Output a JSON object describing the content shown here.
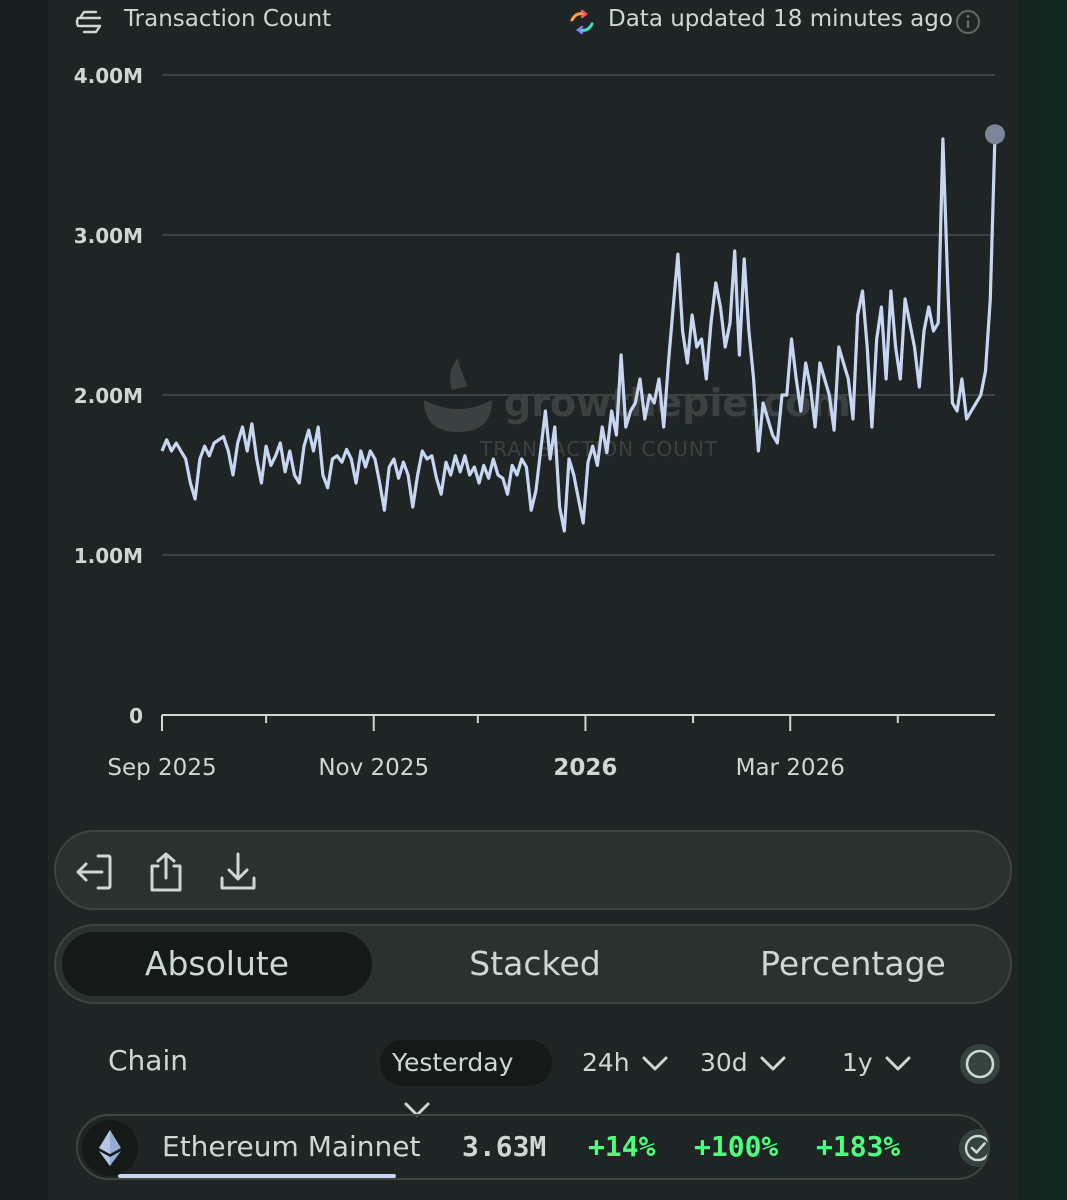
{
  "header": {
    "title": "Transaction Count",
    "updated": "Data updated 18 minutes ago",
    "icons": [
      "transaction-count-icon",
      "refresh-icon",
      "info-icon"
    ]
  },
  "chart_data": {
    "type": "line",
    "ylim": [
      0,
      4000000
    ],
    "yticks": [
      {
        "value": 0,
        "label": "0"
      },
      {
        "value": 1000000,
        "label": "1.00M"
      },
      {
        "value": 2000000,
        "label": "2.00M"
      },
      {
        "value": 3000000,
        "label": "3.00M"
      },
      {
        "value": 4000000,
        "label": "4.00M"
      }
    ],
    "xticks": [
      {
        "date": "2025-09-01",
        "label": "Sep 2025",
        "bold": false
      },
      {
        "date": "2025-11-01",
        "label": "Nov 2025",
        "bold": false
      },
      {
        "date": "2026-01-01",
        "label": "2026",
        "bold": true
      },
      {
        "date": "2026-03-01",
        "label": "Mar 2026",
        "bold": false
      }
    ],
    "xrange": [
      "2025-09-01",
      "2026-04-29"
    ],
    "grid": true,
    "line_color": "#c7d6f2",
    "watermark": {
      "brand": "growthepie.com",
      "subtitle": "TRANSACTION COUNT"
    },
    "series": [
      {
        "values": [
          1650000,
          1720000,
          1650000,
          1700000,
          1650000,
          1600000,
          1450000,
          1350000,
          1600000,
          1680000,
          1620000,
          1700000,
          1720000,
          1740000,
          1650000,
          1500000,
          1700000,
          1800000,
          1650000,
          1820000,
          1600000,
          1450000,
          1680000,
          1560000,
          1620000,
          1700000,
          1520000,
          1650000,
          1500000,
          1450000,
          1680000,
          1780000,
          1650000,
          1800000,
          1500000,
          1420000,
          1600000,
          1620000,
          1580000,
          1660000,
          1600000,
          1450000,
          1650000,
          1550000,
          1650000,
          1600000,
          1450000,
          1280000,
          1550000,
          1600000,
          1480000,
          1580000,
          1500000,
          1300000,
          1500000,
          1650000,
          1600000,
          1620000,
          1480000,
          1380000,
          1580000,
          1500000,
          1620000,
          1520000,
          1620000,
          1500000,
          1550000,
          1450000,
          1560000,
          1480000,
          1600000,
          1500000,
          1480000,
          1380000,
          1560000,
          1500000,
          1600000,
          1550000,
          1280000,
          1400000,
          1650000,
          1900000,
          1600000,
          1800000,
          1300000,
          1150000,
          1600000,
          1500000,
          1350000,
          1200000,
          1580000,
          1680000,
          1560000,
          1800000,
          1640000,
          1900000,
          1750000,
          2250000,
          1800000,
          1900000,
          1950000,
          2100000,
          1850000,
          2000000,
          1950000,
          2100000,
          1800000,
          2200000,
          2550000,
          2880000,
          2400000,
          2200000,
          2500000,
          2300000,
          2350000,
          2100000,
          2450000,
          2700000,
          2550000,
          2300000,
          2450000,
          2900000,
          2250000,
          2850000,
          2400000,
          2100000,
          1650000,
          1950000,
          1850000,
          1750000,
          1700000,
          2000000,
          2000000,
          2350000,
          2100000,
          1900000,
          2200000,
          2050000,
          1800000,
          2200000,
          2100000,
          2000000,
          1780000,
          2300000,
          2200000,
          2100000,
          1850000,
          2500000,
          2650000,
          2300000,
          1800000,
          2350000,
          2550000,
          2100000,
          2650000,
          2300000,
          2100000,
          2600000,
          2450000,
          2300000,
          2050000,
          2400000,
          2550000,
          2400000,
          2450000,
          3600000,
          2700000,
          1950000,
          1900000,
          2100000,
          1850000,
          1900000,
          1950000,
          2000000,
          2150000,
          2600000,
          3630000
        ]
      }
    ],
    "last_point_marker": true
  },
  "toolbar": {
    "icons": [
      "exit-icon",
      "share-icon",
      "download-icon"
    ]
  },
  "modes": [
    {
      "label": "Absolute",
      "active": true
    },
    {
      "label": "Stacked",
      "active": false
    },
    {
      "label": "Percentage",
      "active": false
    }
  ],
  "table": {
    "chain_header": "Chain",
    "periods": [
      {
        "label": "Yesterday",
        "active": true
      },
      {
        "label": "24h",
        "active": false
      },
      {
        "label": "30d",
        "active": false
      },
      {
        "label": "1y",
        "active": false
      }
    ],
    "rows": [
      {
        "chain": "Ethereum Mainnet",
        "value": "3.63M",
        "change_24h": "+14%",
        "change_30d": "+100%",
        "change_1y": "+183%",
        "share_fraction": 0.3,
        "selected": true
      }
    ]
  }
}
